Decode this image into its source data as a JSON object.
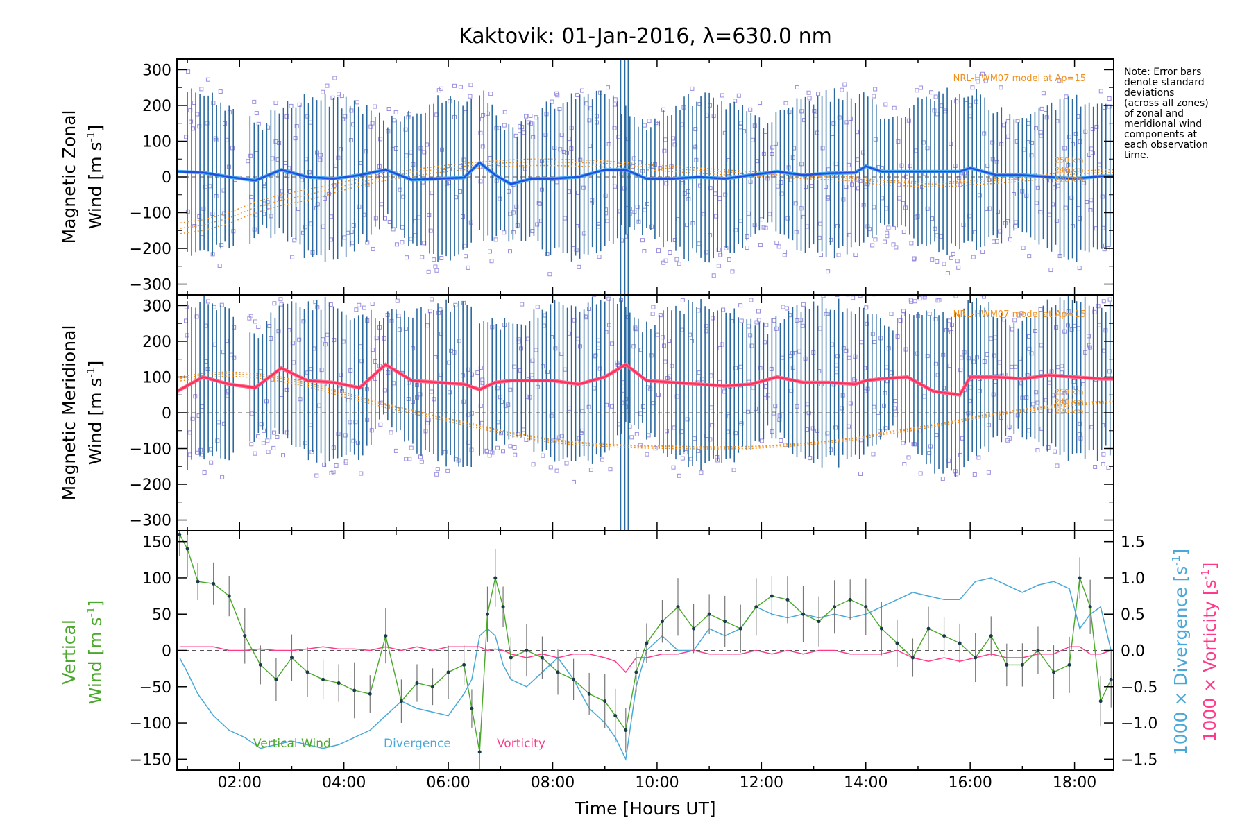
{
  "title": "Kaktovik: 01-Jan-2016, λ=630.0 nm",
  "note_lines": [
    "Note: Error bars",
    "denote standard",
    "deviations",
    "(across all zones)",
    "of zonal and",
    "meridional wind",
    "components at",
    "each observation",
    "time."
  ],
  "model_label": "NRL-HWM07 model at Ap=15",
  "altitude_labels": [
    "250 km",
    "240 km",
    "220 km"
  ],
  "xaxis": {
    "label": "Time [Hours UT]",
    "tick_labels": [
      "02:00",
      "04:00",
      "06:00",
      "08:00",
      "10:00",
      "12:00",
      "14:00",
      "16:00",
      "18:00"
    ]
  },
  "panels": {
    "zonal": {
      "ylabel_line1": "Magnetic Zonal",
      "ylabel_line2": "Wind [m s",
      "ylabel_sup": "-1",
      "ylabel_end": "]",
      "tick_labels": [
        "300",
        "200",
        "100",
        "0",
        "−100",
        "−200",
        "−300"
      ]
    },
    "meridional": {
      "ylabel_line1": "Magnetic Meridional",
      "ylabel_line2": "Wind [m s",
      "ylabel_sup": "-1",
      "ylabel_end": "]",
      "tick_labels": [
        "300",
        "200",
        "100",
        "0",
        "−100",
        "−200",
        "−300"
      ]
    },
    "vertical": {
      "ylabel_line1": "Vertical",
      "ylabel_line2": "Wind [m s",
      "ylabel_sup": "-1",
      "ylabel_end": "]",
      "tick_labels": [
        "150",
        "100",
        "50",
        "0",
        "−50",
        "−100",
        "−150"
      ],
      "right_tick_labels": [
        "1.5",
        "1.0",
        "0.5",
        "0.0",
        "−0.5",
        "−1.0",
        "−1.5"
      ],
      "right_label_div": "1000 × Divergence [s",
      "right_label_vort": "1000 × Vorticity [s",
      "right_sup": "-1",
      "right_end": "]",
      "legend": [
        "Vertical Wind",
        "Divergence",
        "Vorticity"
      ]
    }
  },
  "colors": {
    "zonal_mean": "#1f4fe0",
    "zonal_mean_light": "#4aa8f0",
    "meridional_mean": "#ff2e5c",
    "model": "#f0901e",
    "scatter": "#9a90e0",
    "errorbar": "#2a6aa0",
    "vertical": "#4aa82a",
    "divergence": "#4aa8d8",
    "vorticity": "#ff3a8a",
    "zero_line": "#555555"
  },
  "chart_data": [
    {
      "type": "line",
      "panel": "Magnetic Zonal Wind",
      "xlim_hours": [
        0.8,
        18.75
      ],
      "ylim": [
        -330,
        330
      ],
      "x_hours": [
        0.8,
        1.3,
        1.8,
        2.3,
        2.8,
        3.3,
        3.8,
        4.3,
        4.8,
        5.3,
        5.8,
        6.3,
        6.6,
        6.9,
        7.2,
        7.6,
        8.0,
        8.5,
        9.0,
        9.4,
        9.8,
        10.3,
        10.8,
        11.3,
        11.8,
        12.3,
        12.8,
        13.3,
        13.8,
        14.0,
        14.3,
        14.8,
        15.3,
        15.8,
        16.0,
        16.5,
        17.0,
        17.5,
        18.0,
        18.5,
        18.75
      ],
      "mean_wind": [
        15,
        12,
        0,
        -10,
        20,
        0,
        -5,
        5,
        20,
        -8,
        -5,
        -2,
        40,
        5,
        -20,
        -5,
        -5,
        0,
        20,
        20,
        -5,
        -5,
        0,
        -5,
        5,
        15,
        5,
        10,
        12,
        30,
        15,
        15,
        15,
        15,
        25,
        5,
        5,
        0,
        -5,
        2,
        2
      ],
      "model_250km": [
        -130,
        -120,
        -100,
        -70,
        -50,
        -35,
        -20,
        -5,
        10,
        20,
        30,
        38,
        42,
        45,
        48,
        50,
        50,
        48,
        45,
        40,
        35,
        30,
        25,
        20,
        15,
        12,
        10,
        5,
        0,
        -5,
        -10,
        -12,
        -15,
        -12,
        -10,
        -5,
        0,
        8,
        15,
        20,
        20
      ],
      "model_240km": [
        -145,
        -135,
        -115,
        -85,
        -65,
        -50,
        -32,
        -15,
        0,
        12,
        22,
        30,
        34,
        38,
        40,
        42,
        42,
        40,
        38,
        33,
        28,
        23,
        18,
        14,
        10,
        6,
        3,
        0,
        -5,
        -10,
        -15,
        -17,
        -20,
        -17,
        -15,
        -10,
        -5,
        2,
        8,
        12,
        12
      ],
      "model_220km": [
        -160,
        -150,
        -130,
        -100,
        -80,
        -65,
        -45,
        -25,
        -10,
        2,
        12,
        20,
        25,
        28,
        30,
        32,
        32,
        30,
        28,
        24,
        20,
        15,
        10,
        6,
        2,
        -2,
        -5,
        -8,
        -12,
        -17,
        -22,
        -25,
        -28,
        -25,
        -22,
        -18,
        -12,
        -5,
        0,
        5,
        5
      ]
    },
    {
      "type": "line",
      "panel": "Magnetic Meridional Wind",
      "xlim_hours": [
        0.8,
        18.75
      ],
      "ylim": [
        -330,
        330
      ],
      "x_hours": [
        0.8,
        1.3,
        1.8,
        2.3,
        2.8,
        3.3,
        3.8,
        4.3,
        4.8,
        5.3,
        5.8,
        6.3,
        6.6,
        6.9,
        7.2,
        7.6,
        8.0,
        8.5,
        9.0,
        9.4,
        9.8,
        10.3,
        10.8,
        11.3,
        11.8,
        12.3,
        12.8,
        13.3,
        13.8,
        14.0,
        14.3,
        14.8,
        15.3,
        15.8,
        16.0,
        16.5,
        17.0,
        17.5,
        18.0,
        18.5,
        18.75
      ],
      "mean_wind": [
        60,
        100,
        80,
        70,
        125,
        90,
        85,
        70,
        135,
        90,
        85,
        80,
        65,
        85,
        90,
        90,
        90,
        80,
        100,
        135,
        90,
        85,
        80,
        75,
        80,
        100,
        85,
        85,
        80,
        90,
        95,
        100,
        60,
        50,
        100,
        100,
        95,
        105,
        100,
        95,
        95
      ],
      "model_250km": [
        100,
        110,
        115,
        110,
        100,
        85,
        65,
        45,
        25,
        8,
        -10,
        -25,
        -35,
        -45,
        -55,
        -65,
        -75,
        -82,
        -88,
        -90,
        -92,
        -93,
        -95,
        -95,
        -94,
        -90,
        -85,
        -78,
        -70,
        -65,
        -55,
        -45,
        -32,
        -20,
        -12,
        0,
        10,
        20,
        28,
        32,
        32
      ],
      "model_240km": [
        95,
        105,
        110,
        105,
        95,
        80,
        60,
        40,
        22,
        5,
        -12,
        -28,
        -38,
        -48,
        -58,
        -68,
        -78,
        -85,
        -90,
        -92,
        -94,
        -95,
        -97,
        -97,
        -96,
        -92,
        -87,
        -80,
        -72,
        -67,
        -58,
        -48,
        -35,
        -22,
        -15,
        -3,
        7,
        17,
        25,
        29,
        29
      ],
      "model_220km": [
        88,
        98,
        103,
        98,
        88,
        73,
        53,
        33,
        15,
        -2,
        -18,
        -34,
        -44,
        -54,
        -64,
        -74,
        -84,
        -90,
        -95,
        -97,
        -99,
        -100,
        -101,
        -101,
        -100,
        -96,
        -91,
        -84,
        -76,
        -71,
        -62,
        -52,
        -39,
        -26,
        -19,
        -7,
        3,
        13,
        21,
        25,
        25
      ]
    },
    {
      "type": "line",
      "panel": "Vertical Wind / Divergence / Vorticity",
      "xlim_hours": [
        0.8,
        18.75
      ],
      "ylim": [
        -165,
        165
      ],
      "y2lim": [
        -1.5,
        1.5
      ],
      "x_hours": [
        0.85,
        1.0,
        1.2,
        1.5,
        1.8,
        2.1,
        2.4,
        2.7,
        3.0,
        3.3,
        3.6,
        3.9,
        4.2,
        4.5,
        4.8,
        5.1,
        5.4,
        5.7,
        6.0,
        6.3,
        6.45,
        6.6,
        6.75,
        6.9,
        7.05,
        7.2,
        7.5,
        7.8,
        8.1,
        8.4,
        8.7,
        9.0,
        9.2,
        9.4,
        9.6,
        9.8,
        10.1,
        10.4,
        10.7,
        11.0,
        11.3,
        11.6,
        11.9,
        12.2,
        12.5,
        12.8,
        13.1,
        13.4,
        13.7,
        14.0,
        14.3,
        14.6,
        14.9,
        15.2,
        15.5,
        15.8,
        16.1,
        16.4,
        16.7,
        17.0,
        17.3,
        17.6,
        17.9,
        18.1,
        18.3,
        18.5,
        18.7
      ],
      "vertical_wind": [
        160,
        140,
        95,
        92,
        75,
        20,
        -20,
        -40,
        -10,
        -30,
        -40,
        -45,
        -55,
        -60,
        20,
        -70,
        -45,
        -50,
        -30,
        -20,
        -80,
        -140,
        50,
        100,
        60,
        -10,
        0,
        -10,
        -30,
        -40,
        -60,
        -70,
        -90,
        -110,
        -30,
        10,
        40,
        60,
        30,
        50,
        40,
        30,
        60,
        75,
        70,
        50,
        40,
        60,
        70,
        60,
        30,
        10,
        -10,
        30,
        20,
        10,
        -10,
        20,
        -20,
        -20,
        0,
        -30,
        -20,
        100,
        60,
        -70,
        -40
      ],
      "divergence": [
        -0.1,
        -0.3,
        -0.6,
        -0.9,
        -1.1,
        -1.2,
        -1.35,
        -1.3,
        -1.25,
        -1.3,
        -1.35,
        -1.3,
        -1.2,
        -1.1,
        -0.9,
        -0.7,
        -0.8,
        -0.85,
        -0.9,
        -0.6,
        -0.4,
        0.2,
        0.3,
        0.2,
        -0.2,
        -0.4,
        -0.5,
        -0.3,
        -0.1,
        -0.4,
        -0.8,
        -1.0,
        -1.2,
        -1.5,
        -0.5,
        0.0,
        0.2,
        0.0,
        0.0,
        0.3,
        0.2,
        0.3,
        0.6,
        0.5,
        0.45,
        0.5,
        0.45,
        0.5,
        0.45,
        0.5,
        0.6,
        0.7,
        0.8,
        0.75,
        0.7,
        0.7,
        0.95,
        1.0,
        0.9,
        0.8,
        0.9,
        0.95,
        0.85,
        0.3,
        0.5,
        0.6,
        0.0
      ],
      "vorticity": [
        0.05,
        0.05,
        0.05,
        0.05,
        0.0,
        0.0,
        0.02,
        0.0,
        0.0,
        0.02,
        0.05,
        0.02,
        0.02,
        0.0,
        0.05,
        0.0,
        0.05,
        0.0,
        0.05,
        0.05,
        0.05,
        0.05,
        0.0,
        0.02,
        0.0,
        -0.05,
        -0.1,
        -0.05,
        -0.1,
        -0.05,
        -0.05,
        -0.1,
        -0.15,
        -0.3,
        -0.1,
        -0.1,
        -0.05,
        -0.05,
        0.0,
        -0.05,
        -0.05,
        -0.05,
        0.0,
        -0.05,
        0.0,
        -0.05,
        0.0,
        0.0,
        -0.05,
        -0.05,
        -0.05,
        0.0,
        -0.1,
        -0.15,
        -0.1,
        -0.15,
        -0.1,
        -0.05,
        -0.1,
        -0.1,
        -0.05,
        -0.05,
        0.05,
        0.05,
        -0.05,
        -0.05,
        0.0
      ]
    }
  ]
}
